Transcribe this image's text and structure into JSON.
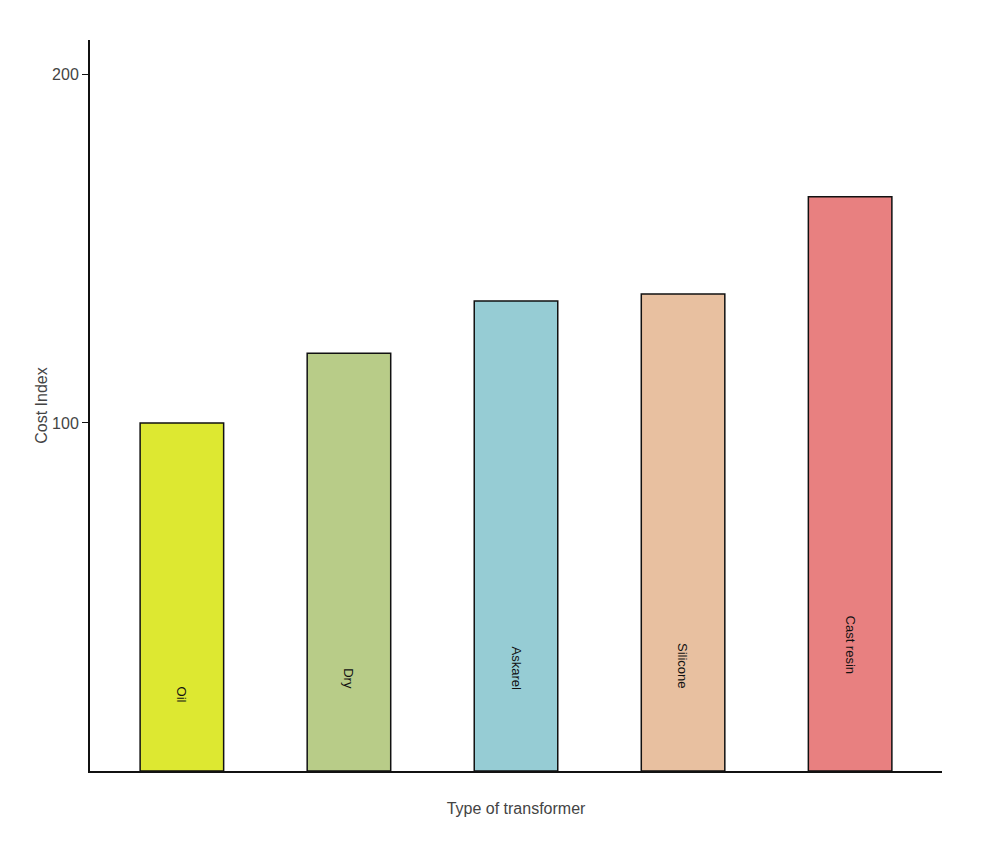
{
  "chart_data": {
    "type": "bar",
    "categories": [
      "Oil",
      "Dry",
      "Askarel",
      "Silicone",
      "Cast resin"
    ],
    "values": [
      100,
      120,
      135,
      137,
      165
    ],
    "colors": [
      "#dde831",
      "#b8cc88",
      "#96ccd4",
      "#e8c0a0",
      "#e88080"
    ],
    "xlabel": "Type of transformer",
    "ylabel": "Cost Index",
    "ylim": [
      0,
      210
    ],
    "yticks": [
      100,
      200
    ],
    "grid": false,
    "tick_labels": "y"
  }
}
